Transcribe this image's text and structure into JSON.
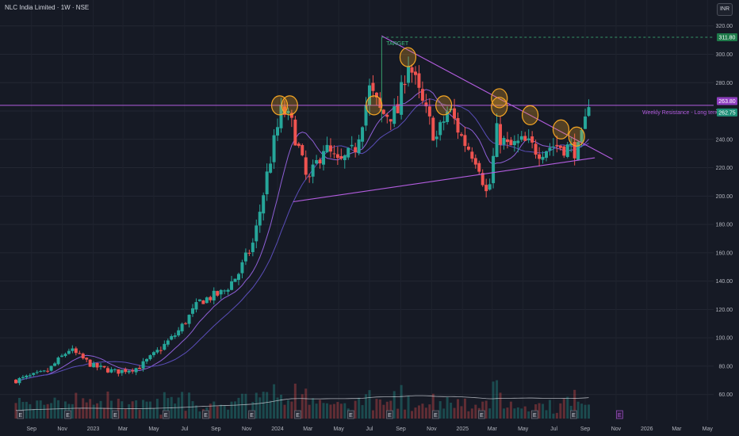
{
  "header": {
    "title": "NLC India Limited · 1W · NSE",
    "currency": "INR"
  },
  "colors": {
    "up": "#26a69a",
    "down": "#ef5350",
    "trendline": "#b45de0",
    "highlight": "#f5a623",
    "target": "#3fbf7f",
    "ma1": "#8e5fd6",
    "ma2": "#5a4db8",
    "volumeLine": "#d1d4dc"
  },
  "annotations": {
    "target_label": "TARGET",
    "resistance_label": "Weekly Resistance - Long term",
    "target_price": "311.80",
    "resistance_price": "263.80",
    "last_price": "262.75"
  },
  "chart_data": {
    "type": "candlestick",
    "x_tick_labels": [
      "Sep",
      "Nov",
      "2023",
      "Mar",
      "May",
      "Jul",
      "Sep",
      "Nov",
      "2024",
      "Mar",
      "May",
      "Jul",
      "Sep",
      "Nov",
      "2025",
      "Mar",
      "May",
      "Jul",
      "Sep",
      "Nov",
      "2026",
      "Mar",
      "May"
    ],
    "y_ticks": [
      60,
      80,
      100,
      120,
      140,
      160,
      180,
      200,
      220,
      240,
      260,
      280,
      300,
      320
    ],
    "ylim": [
      52,
      326
    ],
    "price_anchors": [
      [
        "2022-08-01",
        70
      ],
      [
        "2022-10-01",
        76
      ],
      [
        "2022-11-15",
        92
      ],
      [
        "2023-01-01",
        80
      ],
      [
        "2023-02-15",
        76
      ],
      [
        "2023-04-01",
        79
      ],
      [
        "2023-05-01",
        88
      ],
      [
        "2023-06-15",
        103
      ],
      [
        "2023-08-01",
        126
      ],
      [
        "2023-09-15",
        132
      ],
      [
        "2023-10-15",
        145
      ],
      [
        "2023-11-15",
        168
      ],
      [
        "2023-12-15",
        222
      ],
      [
        "2024-01-10",
        262
      ],
      [
        "2024-02-01",
        248
      ],
      [
        "2024-03-01",
        208
      ],
      [
        "2024-04-01",
        235
      ],
      [
        "2024-05-01",
        222
      ],
      [
        "2024-06-01",
        232
      ],
      [
        "2024-07-01",
        275
      ],
      [
        "2024-07-25",
        258
      ],
      [
        "2024-08-25",
        258
      ],
      [
        "2024-09-15",
        297
      ],
      [
        "2024-10-10",
        268
      ],
      [
        "2024-11-10",
        240
      ],
      [
        "2024-12-05",
        262
      ],
      [
        "2025-01-01",
        240
      ],
      [
        "2025-02-01",
        225
      ],
      [
        "2025-02-20",
        198
      ],
      [
        "2025-03-10",
        245
      ],
      [
        "2025-04-01",
        234
      ],
      [
        "2025-05-01",
        238
      ],
      [
        "2025-06-01",
        232
      ],
      [
        "2025-07-01",
        236
      ],
      [
        "2025-08-01",
        234
      ],
      [
        "2025-08-20",
        232
      ],
      [
        "2025-09-08",
        262.75
      ]
    ],
    "moving_averages": [
      "ma1",
      "ma2"
    ],
    "volume_line": true,
    "trendlines": [
      {
        "name": "descending",
        "from": [
          "2024-07-25",
          313
        ],
        "to": [
          "2025-10-25",
          226
        ]
      },
      {
        "name": "ascending",
        "from": [
          "2024-02-01",
          196
        ],
        "to": [
          "2025-09-20",
          227
        ]
      },
      {
        "name": "resistance",
        "from": [
          "2022-08-01",
          264
        ],
        "to": [
          "2025-12-25",
          264
        ]
      },
      {
        "name": "target",
        "from": [
          "2024-07-25",
          312
        ],
        "to": [
          "2026-06-01",
          312
        ]
      }
    ],
    "highlight_circles": [
      [
        "2024-01-05",
        264
      ],
      [
        "2024-01-25",
        264
      ],
      [
        "2024-07-10",
        264
      ],
      [
        "2024-09-15",
        298
      ],
      [
        "2024-11-25",
        264
      ],
      [
        "2025-03-15",
        269
      ],
      [
        "2025-03-15",
        263
      ],
      [
        "2025-05-15",
        257
      ],
      [
        "2025-07-15",
        247
      ],
      [
        "2025-08-15",
        242
      ]
    ],
    "earnings_markers": [
      "2022-08-10",
      "2022-11-12",
      "2023-02-14",
      "2023-05-25",
      "2023-08-12",
      "2023-11-11",
      "2024-02-10",
      "2024-05-25",
      "2024-08-10",
      "2024-11-09",
      "2025-02-08",
      "2025-05-24",
      "2025-08-09",
      "2025-11-08"
    ],
    "grid": true
  }
}
